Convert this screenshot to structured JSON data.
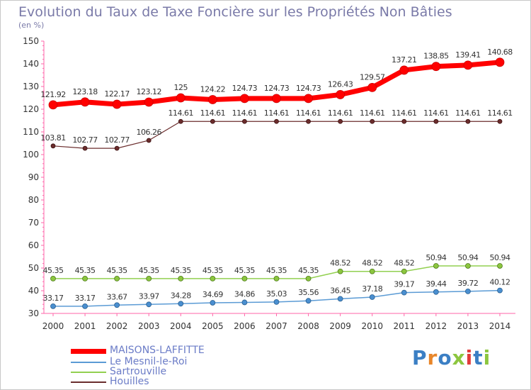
{
  "title": "Evolution du Taux de Taxe Foncière sur les Propriétés Non Bâties",
  "unit_label": "(en %)",
  "logo_text": "Proxiti",
  "colors": {
    "MAISONS-LAFFITTE": "#ff0000",
    "Le Mesnil-le-Roi": "#5b9bd5",
    "Sartrouville": "#92d050",
    "Houilles": "#6b2d2d"
  },
  "chart_data": {
    "type": "line",
    "title": "Evolution du Taux de Taxe Foncière sur les Propriétés Non Bâties",
    "ylabel": "(en %)",
    "ylim": [
      30,
      150
    ],
    "yticks": [
      30,
      40,
      50,
      60,
      70,
      80,
      90,
      100,
      110,
      120,
      130,
      140,
      150
    ],
    "grid": false,
    "legend": "bottom-left",
    "x": [
      "2000",
      "2001",
      "2002",
      "2003",
      "2004",
      "2005",
      "2006",
      "2007",
      "2008",
      "2009",
      "2010",
      "2011",
      "2012",
      "2013",
      "2014"
    ],
    "series": [
      {
        "name": "MAISONS-LAFFITTE",
        "values": [
          121.92,
          123.18,
          122.17,
          123.12,
          125,
          124.22,
          124.73,
          124.73,
          124.73,
          126.43,
          129.57,
          137.21,
          138.85,
          139.41,
          140.68
        ],
        "labels": [
          "121.92",
          "123.18",
          "122.17",
          "123.12",
          "125",
          "124.22",
          "124.73",
          "124.73",
          "124.73",
          "126.43",
          "129.57",
          "137.21",
          "138.85",
          "139.41",
          "140.68"
        ]
      },
      {
        "name": "Le Mesnil-le-Roi",
        "values": [
          33.17,
          33.17,
          33.67,
          33.97,
          34.28,
          34.69,
          34.86,
          35.03,
          35.56,
          36.45,
          37.18,
          39.17,
          39.44,
          39.72,
          40.12
        ],
        "labels": [
          "33.17",
          "33.17",
          "33.67",
          "33.97",
          "34.28",
          "34.69",
          "34.86",
          "35.03",
          "35.56",
          "36.45",
          "37.18",
          "39.17",
          "39.44",
          "39.72",
          "40.12"
        ]
      },
      {
        "name": "Sartrouville",
        "values": [
          45.35,
          45.35,
          45.35,
          45.35,
          45.35,
          45.35,
          45.35,
          45.35,
          45.35,
          48.52,
          48.52,
          48.52,
          50.94,
          50.94,
          50.94
        ],
        "labels": [
          "45.35",
          "45.35",
          "45.35",
          "45.35",
          "45.35",
          "45.35",
          "45.35",
          "45.35",
          "45.35",
          "48.52",
          "48.52",
          "48.52",
          "50.94",
          "50.94",
          "50.94"
        ]
      },
      {
        "name": "Houilles",
        "values": [
          103.81,
          102.77,
          102.77,
          106.26,
          114.61,
          114.61,
          114.61,
          114.61,
          114.61,
          114.61,
          114.61,
          114.61,
          114.61,
          114.61,
          114.61
        ],
        "labels": [
          "103.81",
          "102.77",
          "102.77",
          "106.26",
          "114.61",
          "114.61",
          "114.61",
          "114.61",
          "114.61",
          "114.61",
          "114.61",
          "114.61",
          "114.61",
          "114.61",
          "114.61"
        ]
      }
    ]
  }
}
